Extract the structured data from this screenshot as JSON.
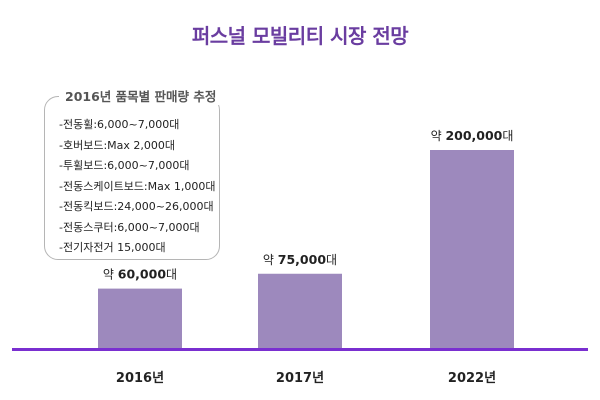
{
  "title": "퍼스널 모빌리티 시장 전망",
  "note": {
    "title": "2016년 품목별 판매량 추정",
    "items": [
      "-전동휠:6,000~7,000대",
      "-호버보드:Max 2,000대",
      "-투휠보드:6,000~7,000대",
      "-전동스케이트보드:Max 1,000대",
      "-전동킥보드:24,000~26,000대",
      "-전동스쿠터:6,000~7,000대",
      "-전기자전거 15,000대"
    ]
  },
  "colors": {
    "bar": "#9d89bd",
    "title": "#6a3da0",
    "baseline": "#7a2fd0"
  },
  "chart_data": {
    "type": "bar",
    "title": "퍼스널 모빌리티 시장 전망",
    "categories": [
      "2016년",
      "2017년",
      "2022년"
    ],
    "values": [
      60000,
      75000,
      200000
    ],
    "data_labels": [
      {
        "prefix": "약 ",
        "number": "60,000",
        "suffix": "대"
      },
      {
        "prefix": "약 ",
        "number": "75,000",
        "suffix": "대"
      },
      {
        "prefix": "약 ",
        "number": "200,000",
        "suffix": "대"
      }
    ],
    "xlabel": "",
    "ylabel": "",
    "ylim": [
      0,
      200000
    ],
    "grid": false,
    "legend": "none"
  }
}
